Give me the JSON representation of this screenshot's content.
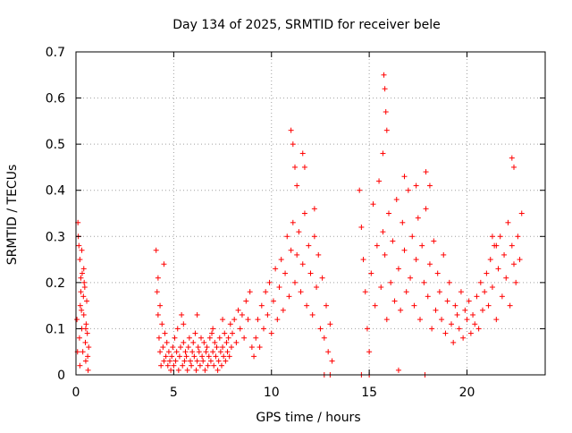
{
  "chart_data": {
    "type": "scatter",
    "title": "Day 134 of 2025, SRMTID for receiver bele",
    "xlabel": "GPS time / hours",
    "ylabel": "SRMTID / TECUs",
    "xlim": [
      0,
      24
    ],
    "ylim": [
      0,
      0.7
    ],
    "xticks": [
      0,
      5,
      10,
      15,
      20
    ],
    "yticks": [
      0,
      0.1,
      0.2,
      0.3,
      0.4,
      0.5,
      0.6,
      0.7
    ],
    "xtick_labels": [
      "0",
      "5",
      "10",
      "15",
      "20"
    ],
    "ytick_labels": [
      "0",
      "0.1",
      "0.2",
      "0.3",
      "0.4",
      "0.5",
      "0.6",
      "0.7"
    ],
    "grid": true,
    "marker": "+",
    "color": "#ff0000",
    "series": [
      {
        "name": "SRMTID",
        "x": [
          0.05,
          0.08,
          0.1,
          0.12,
          0.15,
          0.18,
          0.2,
          0.22,
          0.25,
          0.28,
          0.3,
          0.32,
          0.35,
          0.38,
          0.4,
          0.42,
          0.45,
          0.48,
          0.5,
          0.52,
          0.55,
          0.58,
          0.6,
          0.62,
          0.65,
          0.2,
          0.25,
          0.3,
          0.4,
          0.5,
          4.1,
          4.15,
          4.2,
          4.25,
          4.3,
          4.35,
          4.4,
          4.45,
          4.5,
          4.55,
          4.6,
          4.65,
          4.7,
          4.75,
          4.8,
          4.85,
          4.9,
          4.95,
          5.0,
          5.05,
          5.1,
          5.15,
          5.2,
          5.25,
          5.3,
          5.35,
          5.4,
          5.45,
          5.5,
          5.55,
          5.6,
          5.65,
          5.7,
          5.75,
          5.8,
          5.85,
          5.9,
          5.95,
          6.0,
          6.05,
          6.1,
          6.15,
          6.2,
          6.25,
          6.3,
          6.35,
          6.4,
          6.45,
          6.5,
          6.55,
          6.6,
          6.65,
          6.7,
          6.75,
          6.8,
          6.85,
          6.9,
          6.95,
          7.0,
          7.05,
          7.1,
          7.15,
          7.2,
          7.25,
          7.3,
          7.35,
          7.4,
          7.45,
          7.5,
          7.55,
          7.6,
          7.65,
          7.7,
          7.75,
          7.8,
          7.85,
          7.9,
          7.95,
          8.0,
          8.1,
          8.2,
          8.3,
          8.4,
          8.5,
          8.6,
          8.7,
          8.8,
          8.9,
          9.0,
          4.2,
          4.3,
          4.5,
          5.5,
          6.2,
          7.0,
          7.5,
          9.1,
          9.2,
          9.3,
          9.4,
          9.5,
          9.6,
          9.7,
          9.8,
          9.9,
          10.0,
          10.1,
          10.2,
          10.3,
          10.4,
          10.5,
          10.6,
          10.7,
          10.8,
          10.9,
          11.0,
          11.1,
          11.2,
          11.3,
          11.4,
          11.5,
          11.6,
          11.7,
          11.8,
          11.9,
          12.0,
          12.1,
          12.2,
          12.3,
          12.4,
          12.5,
          12.6,
          12.7,
          12.8,
          12.9,
          13.0,
          13.1,
          11.0,
          11.1,
          11.2,
          11.3,
          11.6,
          11.7,
          12.2,
          14.5,
          14.6,
          14.7,
          14.8,
          14.9,
          15.0,
          15.1,
          15.2,
          15.3,
          15.4,
          15.5,
          15.6,
          15.7,
          15.8,
          15.9,
          16.0,
          16.1,
          16.2,
          16.3,
          16.4,
          16.5,
          16.6,
          16.7,
          16.8,
          16.9,
          17.0,
          17.1,
          17.2,
          17.3,
          17.4,
          17.5,
          17.6,
          17.7,
          17.8,
          17.9,
          18.0,
          18.1,
          18.2,
          18.3,
          18.4,
          18.5,
          18.6,
          18.7,
          18.8,
          18.9,
          19.0,
          19.1,
          19.2,
          19.3,
          19.4,
          19.5,
          19.6,
          19.7,
          19.8,
          19.9,
          20.0,
          20.1,
          20.2,
          20.3,
          20.4,
          20.5,
          20.6,
          20.7,
          20.8,
          20.9,
          21.0,
          21.1,
          21.2,
          21.3,
          21.4,
          21.5,
          21.6,
          21.7,
          21.8,
          21.9,
          22.0,
          22.1,
          22.2,
          22.3,
          22.4,
          22.5,
          22.6,
          22.7,
          22.8,
          15.75,
          15.8,
          15.85,
          15.9,
          15.7,
          16.8,
          17.4,
          17.9,
          18.1,
          22.3,
          22.4,
          21.3,
          21.5,
          14.6,
          15.0,
          16.5,
          12.7,
          13.0,
          17.85
        ],
        "y": [
          0.12,
          0.05,
          0.33,
          0.3,
          0.28,
          0.08,
          0.02,
          0.15,
          0.18,
          0.14,
          0.1,
          0.22,
          0.05,
          0.17,
          0.13,
          0.2,
          0.19,
          0.07,
          0.03,
          0.11,
          0.16,
          0.09,
          0.04,
          0.01,
          0.06,
          0.25,
          0.21,
          0.27,
          0.23,
          0.1,
          0.27,
          0.18,
          0.13,
          0.08,
          0.05,
          0.02,
          0.11,
          0.06,
          0.03,
          0.09,
          0.04,
          0.07,
          0.02,
          0.05,
          0.03,
          0.01,
          0.04,
          0.06,
          0.02,
          0.08,
          0.03,
          0.05,
          0.1,
          0.01,
          0.04,
          0.06,
          0.13,
          0.02,
          0.07,
          0.03,
          0.05,
          0.04,
          0.01,
          0.06,
          0.08,
          0.03,
          0.02,
          0.05,
          0.07,
          0.04,
          0.09,
          0.01,
          0.03,
          0.06,
          0.05,
          0.02,
          0.08,
          0.04,
          0.03,
          0.07,
          0.01,
          0.05,
          0.06,
          0.02,
          0.04,
          0.08,
          0.03,
          0.09,
          0.05,
          0.02,
          0.07,
          0.04,
          0.06,
          0.01,
          0.03,
          0.08,
          0.05,
          0.02,
          0.06,
          0.04,
          0.09,
          0.03,
          0.07,
          0.05,
          0.08,
          0.04,
          0.11,
          0.06,
          0.09,
          0.12,
          0.07,
          0.14,
          0.1,
          0.13,
          0.08,
          0.16,
          0.12,
          0.18,
          0.06,
          0.21,
          0.15,
          0.24,
          0.11,
          0.13,
          0.1,
          0.12,
          0.04,
          0.08,
          0.12,
          0.06,
          0.15,
          0.1,
          0.18,
          0.13,
          0.2,
          0.09,
          0.16,
          0.23,
          0.12,
          0.19,
          0.25,
          0.14,
          0.22,
          0.3,
          0.17,
          0.27,
          0.33,
          0.2,
          0.26,
          0.31,
          0.18,
          0.24,
          0.35,
          0.15,
          0.28,
          0.22,
          0.13,
          0.3,
          0.19,
          0.26,
          0.1,
          0.21,
          0.08,
          0.15,
          0.05,
          0.11,
          0.03,
          0.53,
          0.5,
          0.45,
          0.41,
          0.48,
          0.45,
          0.36,
          0.4,
          0.32,
          0.25,
          0.18,
          0.1,
          0.05,
          0.22,
          0.37,
          0.15,
          0.28,
          0.42,
          0.19,
          0.31,
          0.26,
          0.12,
          0.35,
          0.2,
          0.29,
          0.16,
          0.38,
          0.23,
          0.14,
          0.33,
          0.27,
          0.18,
          0.4,
          0.21,
          0.3,
          0.15,
          0.25,
          0.34,
          0.12,
          0.28,
          0.2,
          0.36,
          0.17,
          0.24,
          0.1,
          0.29,
          0.14,
          0.22,
          0.18,
          0.12,
          0.26,
          0.09,
          0.16,
          0.2,
          0.11,
          0.07,
          0.15,
          0.13,
          0.1,
          0.18,
          0.08,
          0.14,
          0.12,
          0.16,
          0.09,
          0.13,
          0.11,
          0.17,
          0.1,
          0.2,
          0.14,
          0.18,
          0.22,
          0.15,
          0.25,
          0.19,
          0.28,
          0.12,
          0.23,
          0.3,
          0.17,
          0.26,
          0.21,
          0.33,
          0.15,
          0.28,
          0.24,
          0.2,
          0.3,
          0.25,
          0.35,
          0.65,
          0.62,
          0.57,
          0.53,
          0.48,
          0.43,
          0.41,
          0.44,
          0.41,
          0.47,
          0.45,
          0.3,
          0.28,
          0.0,
          0.0,
          0.01,
          0.0,
          0.0,
          0.0
        ]
      }
    ]
  }
}
